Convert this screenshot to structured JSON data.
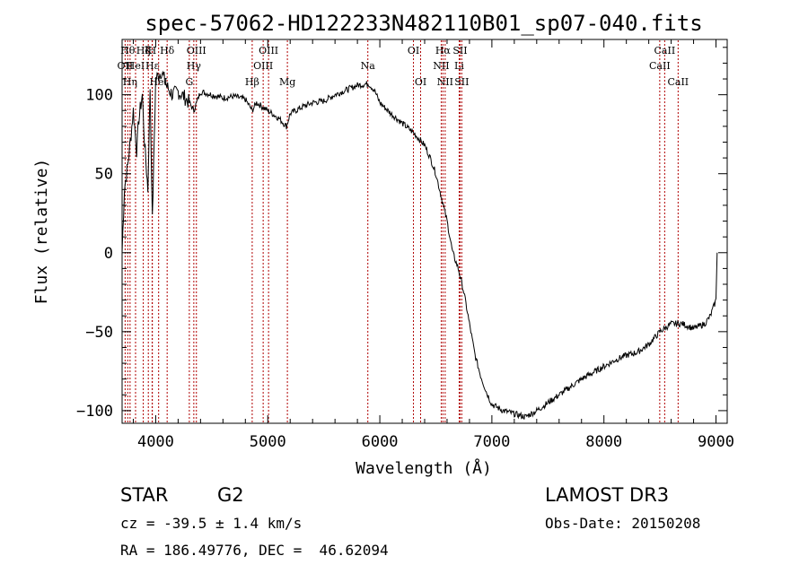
{
  "chart_data": {
    "type": "line",
    "title": "spec-57062-HD122233N482110B01_sp07-040.fits",
    "xlabel": "Wavelength (Å)",
    "ylabel": "Flux (relative)",
    "xlim": [
      3700,
      9100
    ],
    "ylim": [
      -108,
      135
    ],
    "x_ticks": [
      4000,
      5000,
      6000,
      7000,
      8000,
      9000
    ],
    "y_ticks": [
      -100,
      -50,
      0,
      50,
      100
    ],
    "grid": false,
    "series": [
      {
        "name": "spectrum",
        "x": [
          3700,
          3720,
          3750,
          3780,
          3800,
          3830,
          3850,
          3880,
          3900,
          3930,
          3950,
          3970,
          4000,
          4050,
          4100,
          4150,
          4200,
          4250,
          4300,
          4340,
          4400,
          4500,
          4600,
          4700,
          4800,
          4861,
          4900,
          5000,
          5100,
          5167,
          5200,
          5300,
          5400,
          5500,
          5600,
          5700,
          5800,
          5900,
          5950,
          6000,
          6100,
          6200,
          6300,
          6350,
          6400,
          6450,
          6500,
          6550,
          6600,
          6650,
          6700,
          6750,
          6800,
          6850,
          6900,
          6950,
          7000,
          7100,
          7200,
          7300,
          7400,
          7500,
          7600,
          7700,
          7800,
          7900,
          8000,
          8100,
          8200,
          8300,
          8400,
          8500,
          8600,
          8700,
          8800,
          8900,
          8950,
          9000,
          9010
        ],
        "y": [
          0,
          40,
          55,
          75,
          90,
          65,
          85,
          100,
          70,
          40,
          105,
          20,
          110,
          115,
          105,
          100,
          102,
          99,
          95,
          90,
          102,
          100,
          98,
          99,
          97,
          90,
          95,
          90,
          85,
          80,
          88,
          92,
          95,
          96,
          100,
          103,
          106,
          107,
          103,
          95,
          88,
          82,
          76,
          72,
          68,
          60,
          50,
          35,
          20,
          0,
          -10,
          -25,
          -45,
          -65,
          -78,
          -88,
          -96,
          -100,
          -102,
          -104,
          -100,
          -95,
          -90,
          -85,
          -80,
          -76,
          -72,
          -68,
          -65,
          -63,
          -58,
          -50,
          -45,
          -45,
          -48,
          -45,
          -40,
          -30,
          0
        ]
      }
    ],
    "lines": [
      {
        "wl": 3750,
        "label": "Hθ",
        "row": 1
      },
      {
        "wl": 3727,
        "label": "OII",
        "row": 2
      },
      {
        "wl": 3771,
        "label": "Hη",
        "row": 3
      },
      {
        "wl": 3820,
        "label": "HeI",
        "row": 2
      },
      {
        "wl": 3889,
        "label": "Hζ",
        "row": 1
      },
      {
        "wl": 3934,
        "label": "K",
        "row": 1
      },
      {
        "wl": 3968,
        "label": "H",
        "row": 1
      },
      {
        "wl": 3970,
        "label": "Hε",
        "row": 2
      },
      {
        "wl": 4026,
        "label": "HeI",
        "row": 3
      },
      {
        "wl": 4102,
        "label": "Hδ",
        "row": 1
      },
      {
        "wl": 4300,
        "label": "G",
        "row": 3
      },
      {
        "wl": 4340,
        "label": "Hγ",
        "row": 2
      },
      {
        "wl": 4363,
        "label": "OIII",
        "row": 1
      },
      {
        "wl": 4861,
        "label": "Hβ",
        "row": 3
      },
      {
        "wl": 4959,
        "label": "OIII",
        "row": 2
      },
      {
        "wl": 5007,
        "label": "OIII",
        "row": 1
      },
      {
        "wl": 5175,
        "label": "Mg",
        "row": 3
      },
      {
        "wl": 5893,
        "label": "Na",
        "row": 2
      },
      {
        "wl": 6300,
        "label": "OI",
        "row": 1
      },
      {
        "wl": 6364,
        "label": "OI",
        "row": 3
      },
      {
        "wl": 6548,
        "label": "NII",
        "row": 2
      },
      {
        "wl": 6563,
        "label": "Hα",
        "row": 1
      },
      {
        "wl": 6583,
        "label": "NII",
        "row": 3
      },
      {
        "wl": 6708,
        "label": "Li",
        "row": 2
      },
      {
        "wl": 6716,
        "label": "SII",
        "row": 1
      },
      {
        "wl": 6731,
        "label": "SII",
        "row": 3
      },
      {
        "wl": 8498,
        "label": "CaII",
        "row": 2
      },
      {
        "wl": 8542,
        "label": "CaII",
        "row": 1
      },
      {
        "wl": 8662,
        "label": "CaII",
        "row": 3
      }
    ]
  },
  "footer": {
    "object_type": "STAR",
    "subclass": "G2",
    "survey": "LAMOST DR3",
    "cz": "cz = -39.5 ± 1.4 km/s",
    "obs_date": "Obs-Date: 20150208",
    "coords": "RA = 186.49776, DEC =  46.62094"
  }
}
